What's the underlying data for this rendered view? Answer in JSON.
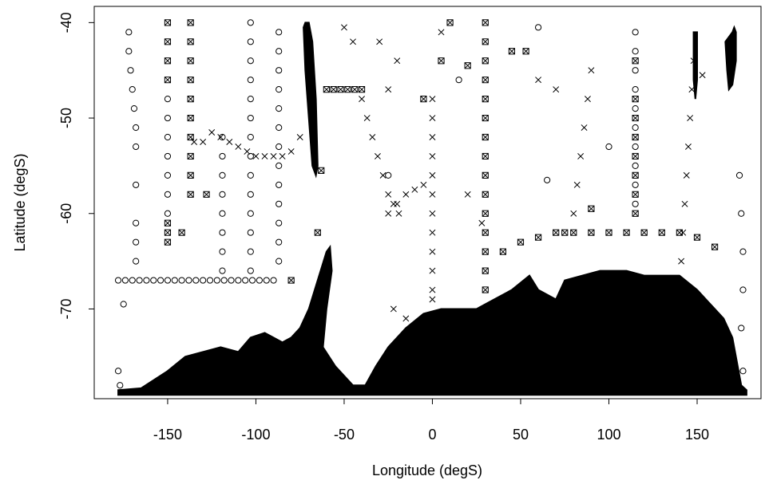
{
  "chart_data": {
    "type": "scatter",
    "x_label": "Longitude (degS)",
    "y_label": "Latitude (degS)",
    "xlim": [
      -191.6,
      186.2
    ],
    "ylim": [
      -79.4,
      -38.3
    ],
    "xticks": [
      -150,
      -100,
      -50,
      0,
      50,
      100,
      150
    ],
    "yticks": [
      -40,
      -50,
      -60,
      -70
    ],
    "series": [
      {
        "marker": "circle",
        "color": "#000000",
        "x": [
          -178,
          -174,
          -170,
          -166,
          -162,
          -158,
          -154,
          -150,
          -146,
          -142,
          -138,
          -134,
          -130,
          -126,
          -122,
          -118,
          -114,
          -110,
          -106,
          -102,
          -98,
          -94,
          -90,
          -103,
          -103,
          -103,
          -103,
          -103,
          -103,
          -103,
          -103,
          -103,
          -103,
          -103,
          -103,
          -103,
          -103,
          -87,
          -87,
          -87,
          -87,
          -87,
          -87,
          -87,
          -87,
          -87,
          -87,
          -87,
          -87,
          -87,
          -150,
          -150,
          -150,
          -150,
          -150,
          -150,
          -150,
          -119,
          -119,
          -119,
          -119,
          -119,
          -119,
          -119,
          -119,
          -172,
          -172,
          -171,
          -170,
          -169,
          -168,
          -168,
          -168,
          -168,
          -168,
          -168,
          115,
          115,
          115,
          115,
          115,
          115,
          115,
          115,
          115,
          115,
          174,
          175,
          176,
          176,
          175,
          172,
          176,
          -175,
          -178,
          -177,
          60,
          100,
          65,
          15,
          -25
        ],
        "values": [
          -67,
          -67,
          -67,
          -67,
          -67,
          -67,
          -67,
          -67,
          -67,
          -67,
          -67,
          -67,
          -67,
          -67,
          -67,
          -67,
          -67,
          -67,
          -67,
          -67,
          -67,
          -67,
          -67,
          -40,
          -42,
          -44,
          -46,
          -48,
          -50,
          -52,
          -54,
          -56,
          -58,
          -60,
          -62,
          -64,
          -66,
          -41,
          -43,
          -45,
          -47,
          -49,
          -51,
          -53,
          -55,
          -57,
          -59,
          -61,
          -63,
          -65,
          -48,
          -50,
          -52,
          -54,
          -56,
          -58,
          -60,
          -52,
          -54,
          -56,
          -58,
          -60,
          -62,
          -64,
          -66,
          -41,
          -43,
          -45,
          -47,
          -49,
          -51,
          -53,
          -57,
          -61,
          -63,
          -65,
          -41,
          -43,
          -45,
          -47,
          -49,
          -51,
          -53,
          -55,
          -57,
          -59,
          -56,
          -60,
          -64,
          -68,
          -72,
          -76.5,
          -76.5,
          -69.5,
          -76.5,
          -78,
          -40.5,
          -53,
          -56.5,
          -46,
          -56
        ]
      },
      {
        "marker": "cross",
        "color": "#000000",
        "x": [
          -135,
          -130,
          -125,
          -120,
          -115,
          -110,
          -105,
          -100,
          -95,
          -90,
          -85,
          -80,
          -75,
          0,
          0,
          0,
          0,
          0,
          0,
          0,
          0,
          0,
          0,
          0,
          0,
          140,
          141,
          142,
          143,
          144,
          145,
          146,
          147,
          148,
          -40,
          -37,
          -34,
          -31,
          -28,
          -25,
          -22,
          -19,
          -25,
          -20,
          -15,
          -10,
          -5,
          80,
          82,
          84,
          86,
          88,
          90,
          -50,
          -45,
          -30,
          -25,
          -20,
          -22,
          -15,
          5,
          20,
          28,
          60,
          70,
          153
        ],
        "values": [
          -52.5,
          -52.5,
          -51.5,
          -52,
          -52.5,
          -53,
          -53.5,
          -54,
          -54,
          -54,
          -54,
          -53.5,
          -52,
          -48,
          -50,
          -52,
          -54,
          -56,
          -58,
          -60,
          -62,
          -64,
          -66,
          -68,
          -69,
          -68,
          -65,
          -62,
          -59,
          -56,
          -53,
          -50,
          -47,
          -44,
          -48,
          -50,
          -52,
          -54,
          -56,
          -58,
          -59,
          -60,
          -60,
          -59,
          -58,
          -57.5,
          -57,
          -60,
          -57,
          -54,
          -51,
          -48,
          -45,
          -40.5,
          -42,
          -42,
          -47,
          -44,
          -70,
          -71,
          -41,
          -58,
          -61,
          -46,
          -47,
          -45.5
        ]
      },
      {
        "marker": "boxed-cross",
        "color": "#000000",
        "x": [
          -150,
          -150,
          -150,
          -150,
          -150,
          -150,
          -150,
          -137,
          -137,
          -137,
          -137,
          -137,
          -137,
          -137,
          -137,
          -137,
          -137,
          30,
          30,
          30,
          30,
          30,
          30,
          30,
          30,
          30,
          30,
          30,
          30,
          30,
          30,
          30,
          115,
          115,
          115,
          115,
          115,
          115,
          115,
          115,
          40,
          50,
          60,
          70,
          80,
          90,
          100,
          110,
          120,
          130,
          140,
          150,
          160,
          -60,
          -56,
          -52,
          -48,
          -44,
          -40,
          -80,
          -128,
          -142,
          10,
          5,
          -5,
          20,
          45,
          53,
          75,
          90,
          -63,
          -65
        ],
        "values": [
          -40,
          -42,
          -44,
          -46,
          -61,
          -62,
          -63,
          -40,
          -42,
          -44,
          -46,
          -48,
          -50,
          -52,
          -54,
          -56,
          -58,
          -40,
          -42,
          -44,
          -46,
          -48,
          -50,
          -52,
          -54,
          -56,
          -58,
          -60,
          -62,
          -64,
          -66,
          -68,
          -44,
          -48,
          -50,
          -52,
          -54,
          -56,
          -58,
          -60,
          -64,
          -63,
          -62.5,
          -62,
          -62,
          -62,
          -62,
          -62,
          -62,
          -62,
          -62,
          -62.5,
          -63.5,
          -47,
          -47,
          -47,
          -47,
          -47,
          -47,
          -67,
          -58,
          -62,
          -40,
          -44,
          -48,
          -44.5,
          -43,
          -43,
          -62,
          -59.5,
          -55.5,
          -62
        ]
      }
    ],
    "land": [
      {
        "color": "#000000",
        "x": [
          -178,
          -165,
          -150,
          -140,
          -130,
          -120,
          -110,
          -103,
          -95,
          -90,
          -85,
          -80,
          -75,
          -70,
          -65,
          -60,
          -58,
          -57,
          -60,
          -62,
          -55,
          -45,
          -38,
          -32,
          -25,
          -15,
          -5,
          5,
          15,
          25,
          35,
          45,
          55,
          60,
          70,
          75,
          85,
          95,
          110,
          120,
          130,
          140,
          150,
          160,
          165,
          170,
          172,
          175,
          178,
          178,
          -178
        ],
        "values": [
          -78.5,
          -78.3,
          -76.5,
          -75,
          -74.5,
          -74,
          -74.5,
          -73,
          -72.5,
          -73,
          -73.5,
          -73,
          -72,
          -70,
          -67,
          -64,
          -63.5,
          -66,
          -70,
          -74,
          -76,
          -78,
          -78,
          -76,
          -74,
          -72,
          -70.5,
          -70,
          -70,
          -70,
          -69,
          -68,
          -66.5,
          -68,
          -69,
          -67,
          -66.5,
          -66,
          -66,
          -66.5,
          -66.5,
          -66.5,
          -68,
          -70,
          -71,
          -73,
          -75,
          -78,
          -78.5,
          -79,
          -79
        ]
      },
      {
        "color": "#000000",
        "x": [
          -73,
          -72,
          -70,
          -68,
          -66,
          -65,
          -66,
          -68,
          -70,
          -72
        ],
        "values": [
          -40.5,
          -40,
          -40,
          -42,
          -48,
          -55,
          -56,
          -55,
          -50,
          -45
        ]
      },
      {
        "color": "#000000",
        "x": [
          166,
          168,
          170,
          171,
          172,
          172,
          170,
          168,
          167
        ],
        "values": [
          -42,
          -41.5,
          -41,
          -40.5,
          -41,
          -44,
          -46.5,
          -47,
          -45
        ]
      },
      {
        "color": "#000000",
        "x": [
          148,
          150,
          150,
          149,
          148
        ],
        "values": [
          -41,
          -41,
          -46,
          -48,
          -46
        ]
      }
    ]
  }
}
